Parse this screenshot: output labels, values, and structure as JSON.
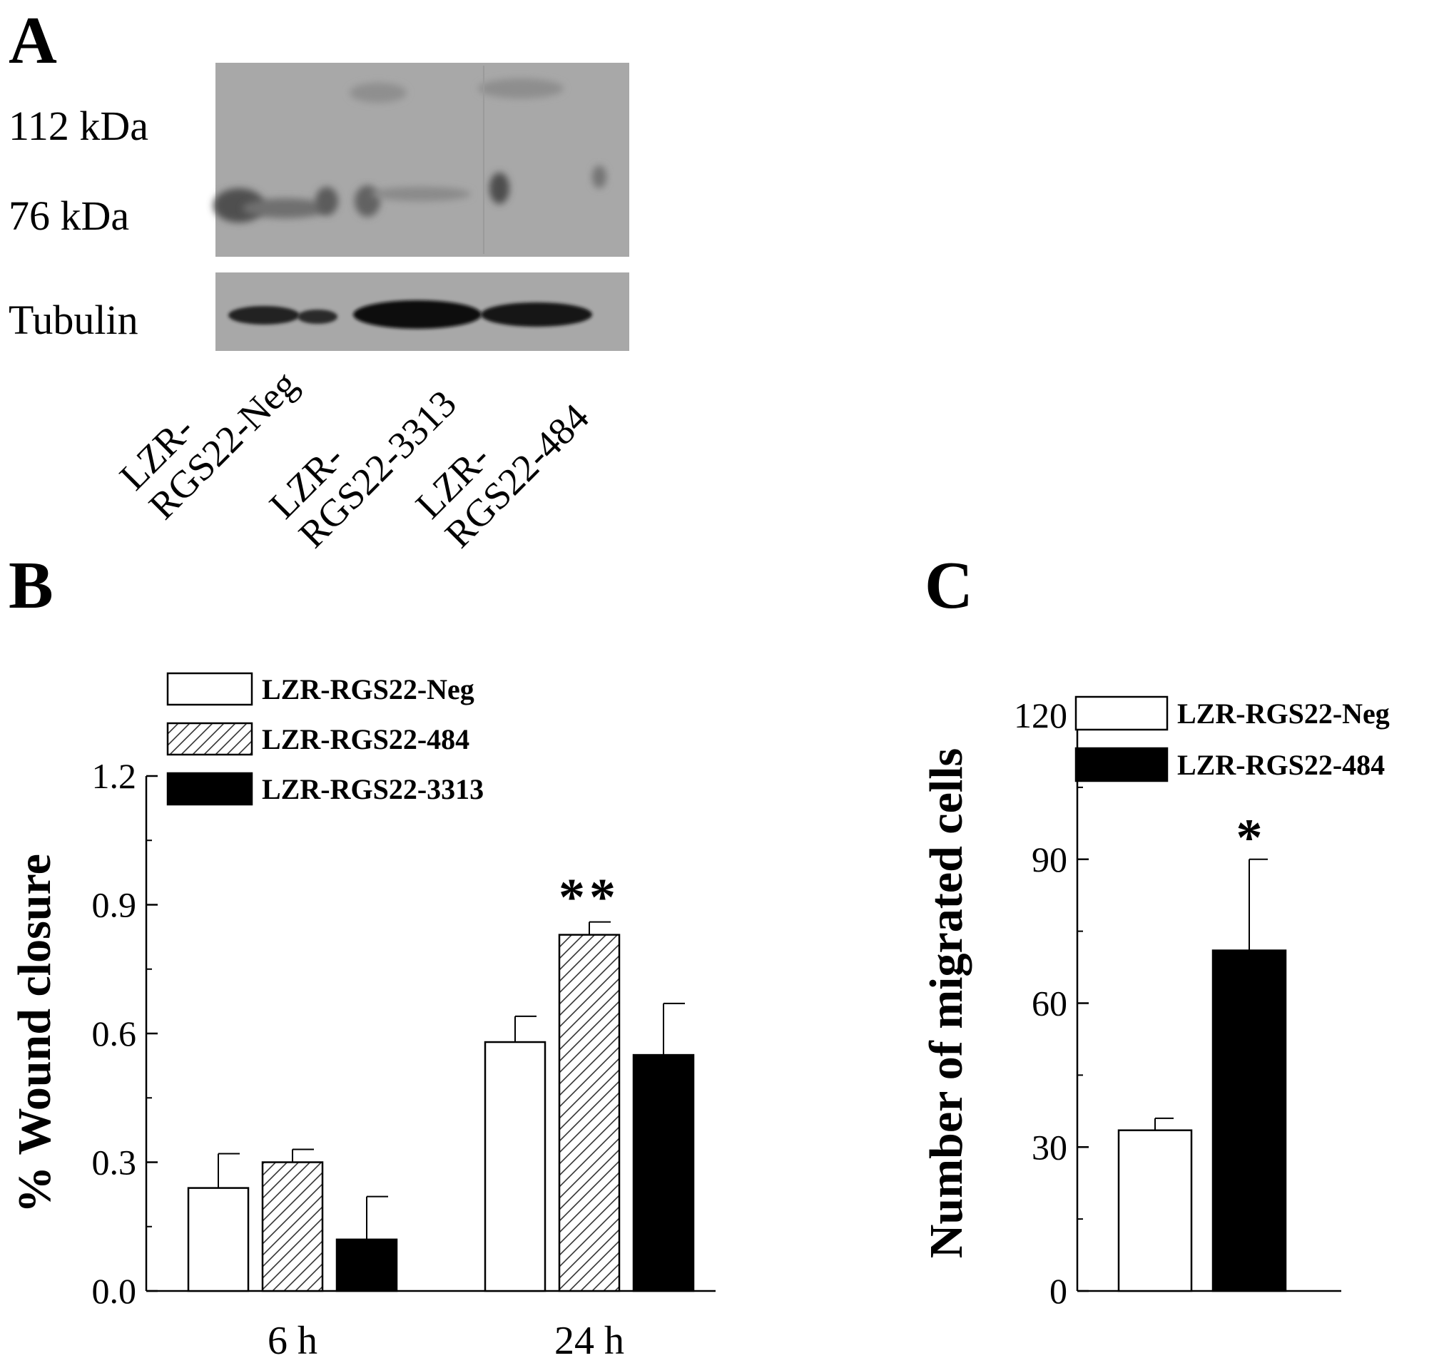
{
  "panels": {
    "A": {
      "letter": "A",
      "markers": [
        "112 kDa",
        "76 kDa"
      ],
      "loading_control": "Tubulin",
      "lanes": [
        {
          "line1": "LZR-",
          "line2": "RGS22-Neg"
        },
        {
          "line1": "LZR-",
          "line2": "RGS22-3313"
        },
        {
          "line1": "LZR-",
          "line2": "RGS22-484"
        }
      ]
    },
    "B": {
      "letter": "B"
    },
    "C": {
      "letter": "C"
    }
  },
  "chart_data": [
    {
      "id": "B",
      "type": "bar",
      "title": "",
      "xlabel": "",
      "ylabel": "% Wound closure",
      "categories": [
        "6 h",
        "24 h"
      ],
      "ylim": [
        0,
        1.2
      ],
      "yticks": [
        "0.0",
        "0.3",
        "0.6",
        "0.9",
        "1.2"
      ],
      "legend_position": "top-left",
      "series": [
        {
          "name": "LZR-RGS22-Neg",
          "values": [
            0.24,
            0.58
          ],
          "errors": [
            0.08,
            0.06
          ],
          "fill": "white"
        },
        {
          "name": "LZR-RGS22-484",
          "values": [
            0.3,
            0.83
          ],
          "errors": [
            0.03,
            0.03
          ],
          "fill": "hatch"
        },
        {
          "name": "LZR-RGS22-3313",
          "values": [
            0.12,
            0.55
          ],
          "errors": [
            0.1,
            0.12
          ],
          "fill": "black"
        }
      ],
      "annotations": [
        {
          "text": "**",
          "category": "24 h",
          "series": "LZR-RGS22-484"
        }
      ]
    },
    {
      "id": "C",
      "type": "bar",
      "title": "",
      "xlabel": "",
      "ylabel": "Number of migrated cells",
      "categories": [
        "LZR-RGS22-Neg",
        "LZR-RGS22-484"
      ],
      "ylim": [
        0,
        120
      ],
      "yticks": [
        "0",
        "30",
        "60",
        "90",
        "120"
      ],
      "legend_position": "top-left",
      "series": [
        {
          "name": "LZR-RGS22-Neg",
          "value": 33.5,
          "error": 2.5,
          "fill": "white"
        },
        {
          "name": "LZR-RGS22-484",
          "value": 71,
          "error": 19,
          "fill": "black"
        }
      ],
      "annotations": [
        {
          "text": "*",
          "series": "LZR-RGS22-484"
        }
      ]
    }
  ]
}
